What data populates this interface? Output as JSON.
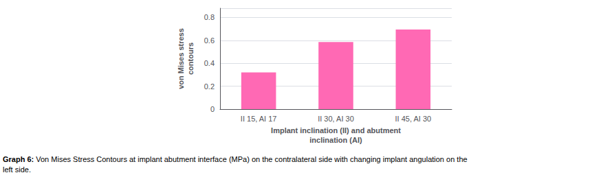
{
  "chart_data": {
    "type": "bar",
    "categories": [
      "II 15, AI 17",
      "II 30, AI 30",
      "II 45, AI 30"
    ],
    "values": [
      0.32,
      0.585,
      0.695
    ],
    "color": "#FF69B4",
    "ylabel": "von Mises stress\ncontours",
    "xlabel": "Implant inclination (II) and abutment\ninclination (AI)",
    "caption_label": "Graph 6:",
    "caption": "Von Mises Stress Contours at implant abutment interface (MPa) on the contralateral side with changing implant angulation on the\nleft side.",
    "ylim": [
      0,
      0.88
    ],
    "yticks": [
      0,
      0.2,
      0.4,
      0.6,
      0.8
    ],
    "grid": true
  }
}
